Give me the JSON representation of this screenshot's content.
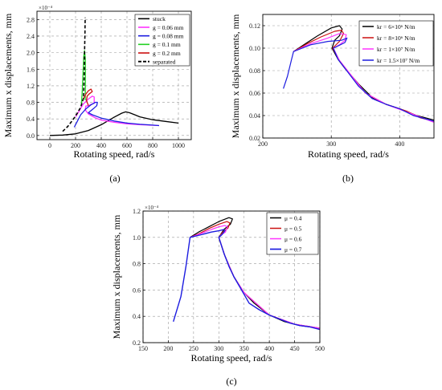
{
  "chart_data": [
    {
      "type": "line",
      "panel_label": "(a)",
      "xlabel": "Rotating speed, rad/s",
      "ylabel": "Maximum x displacements, mm",
      "y_multiplier": "×10⁻⁴",
      "xlim": [
        -100,
        1100
      ],
      "ylim": [
        -0.1,
        3.0
      ],
      "xticks": [
        0,
        200,
        400,
        600,
        800,
        1000
      ],
      "yticks": [
        0.0,
        0.4,
        0.8,
        1.2,
        1.6,
        2.0,
        2.4,
        2.8
      ],
      "tick_format": {
        "x": 0,
        "y": 1
      },
      "legend_loc": "top-right",
      "grid": true,
      "series": [
        {
          "name": "stuck",
          "color": "#000000",
          "dash": false,
          "width": 1.3,
          "points": [
            [
              0,
              0
            ],
            [
              100,
              0.01
            ],
            [
              200,
              0.04
            ],
            [
              300,
              0.12
            ],
            [
              400,
              0.26
            ],
            [
              500,
              0.44
            ],
            [
              560,
              0.54
            ],
            [
              590,
              0.57
            ],
            [
              620,
              0.55
            ],
            [
              660,
              0.5
            ],
            [
              700,
              0.45
            ],
            [
              800,
              0.38
            ],
            [
              900,
              0.34
            ],
            [
              1000,
              0.3
            ]
          ]
        },
        {
          "name": "g = 0.06 mm",
          "color": "#ff33ff",
          "dash": false,
          "width": 1.3,
          "points": [
            [
              200,
              0.45
            ],
            [
              230,
              0.6
            ],
            [
              260,
              0.76
            ],
            [
              300,
              0.88
            ],
            [
              330,
              0.95
            ],
            [
              345,
              0.93
            ],
            [
              345,
              0.78
            ],
            [
              320,
              0.75
            ],
            [
              300,
              0.72
            ],
            [
              280,
              0.71
            ],
            [
              275,
              0.62
            ],
            [
              300,
              0.52
            ],
            [
              350,
              0.43
            ],
            [
              400,
              0.37
            ],
            [
              500,
              0.32
            ],
            [
              600,
              0.28
            ],
            [
              700,
              0.26
            ],
            [
              850,
              0.24
            ]
          ]
        },
        {
          "name": "g = 0.08 mm",
          "color": "#1c1ce0",
          "dash": false,
          "width": 1.3,
          "points": [
            [
              190,
              0.2
            ],
            [
              210,
              0.32
            ],
            [
              240,
              0.5
            ],
            [
              280,
              0.64
            ],
            [
              320,
              0.74
            ],
            [
              355,
              0.8
            ],
            [
              370,
              0.8
            ],
            [
              365,
              0.72
            ],
            [
              340,
              0.65
            ],
            [
              300,
              0.55
            ],
            [
              330,
              0.5
            ],
            [
              400,
              0.42
            ],
            [
              500,
              0.35
            ],
            [
              600,
              0.3
            ],
            [
              700,
              0.27
            ],
            [
              800,
              0.25
            ],
            [
              850,
              0.24
            ]
          ]
        },
        {
          "name": "g = 0.1 mm",
          "color": "#22d022",
          "dash": false,
          "width": 1.3,
          "points": [
            [
              245,
              0.74
            ],
            [
              252,
              1.05
            ],
            [
              258,
              1.5
            ],
            [
              264,
              1.9
            ],
            [
              270,
              2.05
            ],
            [
              276,
              1.85
            ],
            [
              276,
              1.05
            ],
            [
              275,
              0.85
            ]
          ]
        },
        {
          "name": "g = 0.2 mm",
          "color": "#cc1111",
          "dash": false,
          "width": 1.3,
          "points": [
            [
              260,
              0.88
            ],
            [
              280,
              1.0
            ],
            [
              300,
              1.08
            ],
            [
              320,
              1.12
            ],
            [
              330,
              1.06
            ],
            [
              305,
              1.0
            ],
            [
              290,
              0.95
            ],
            [
              285,
              0.85
            ],
            [
              300,
              0.72
            ]
          ]
        },
        {
          "name": "separated",
          "color": "#000000",
          "dash": true,
          "width": 1.6,
          "points": [
            [
              100,
              0.1
            ],
            [
              140,
              0.22
            ],
            [
              180,
              0.38
            ],
            [
              210,
              0.52
            ],
            [
              240,
              0.68
            ],
            [
              262,
              0.9
            ],
            [
              265,
              1.2
            ],
            [
              268,
              1.6
            ],
            [
              270,
              2.0
            ],
            [
              273,
              2.45
            ],
            [
              275,
              2.85
            ]
          ]
        }
      ]
    },
    {
      "type": "line",
      "panel_label": "(b)",
      "xlabel": "Rotating speed, rad/s",
      "ylabel": "Maximum x displacements, mm",
      "xlim": [
        200,
        450
      ],
      "ylim": [
        0.02,
        0.13
      ],
      "xticks": [
        200,
        300,
        400
      ],
      "yticks": [
        0.02,
        0.04,
        0.06,
        0.08,
        0.1,
        0.12
      ],
      "tick_format": {
        "x": 0,
        "y": 2
      },
      "legend_loc": "top-right",
      "grid": true,
      "series": [
        {
          "name": "kr = 6×10⁶ N/m",
          "color": "#000000",
          "dash": false,
          "width": 1.2,
          "points": [
            [
              245,
              0.097
            ],
            [
              260,
              0.103
            ],
            [
              280,
              0.111
            ],
            [
              300,
              0.118
            ],
            [
              312,
              0.12
            ],
            [
              316,
              0.117
            ],
            [
              312,
              0.111
            ],
            [
              305,
              0.107
            ],
            [
              301,
              0.1
            ],
            [
              310,
              0.09
            ],
            [
              320,
              0.082
            ],
            [
              340,
              0.068
            ],
            [
              360,
              0.056
            ],
            [
              380,
              0.05
            ],
            [
              400,
              0.046
            ],
            [
              425,
              0.04
            ],
            [
              450,
              0.036
            ]
          ]
        },
        {
          "name": "kr = 8×10⁶ N/m",
          "color": "#cc1111",
          "dash": false,
          "width": 1.2,
          "points": [
            [
              245,
              0.097
            ],
            [
              265,
              0.104
            ],
            [
              285,
              0.11
            ],
            [
              305,
              0.115
            ],
            [
              315,
              0.116
            ],
            [
              318,
              0.113
            ],
            [
              312,
              0.106
            ],
            [
              302,
              0.1
            ],
            [
              312,
              0.089
            ],
            [
              330,
              0.075
            ],
            [
              350,
              0.06
            ],
            [
              380,
              0.05
            ],
            [
              410,
              0.044
            ],
            [
              430,
              0.038
            ],
            [
              450,
              0.035
            ]
          ]
        },
        {
          "name": "kr = 1×10⁷ N/m",
          "color": "#ff33ff",
          "dash": false,
          "width": 1.2,
          "points": [
            [
              245,
              0.097
            ],
            [
              270,
              0.104
            ],
            [
              295,
              0.109
            ],
            [
              312,
              0.113
            ],
            [
              322,
              0.112
            ],
            [
              320,
              0.107
            ],
            [
              312,
              0.103
            ],
            [
              303,
              0.1
            ],
            [
              312,
              0.089
            ],
            [
              330,
              0.075
            ],
            [
              350,
              0.06
            ],
            [
              380,
              0.05
            ],
            [
              420,
              0.041
            ],
            [
              450,
              0.034
            ]
          ]
        },
        {
          "name": "kr = 1.5×10⁷ N/m",
          "color": "#1c1ce0",
          "dash": false,
          "width": 1.2,
          "points": [
            [
              230,
              0.064
            ],
            [
              236,
              0.075
            ],
            [
              242,
              0.09
            ],
            [
              245,
              0.097
            ],
            [
              270,
              0.103
            ],
            [
              295,
              0.106
            ],
            [
              315,
              0.107
            ],
            [
              323,
              0.109
            ],
            [
              320,
              0.105
            ],
            [
              310,
              0.102
            ],
            [
              303,
              0.1
            ],
            [
              310,
              0.09
            ],
            [
              325,
              0.078
            ],
            [
              340,
              0.066
            ],
            [
              360,
              0.055
            ],
            [
              380,
              0.05
            ],
            [
              400,
              0.046
            ],
            [
              420,
              0.04
            ],
            [
              450,
              0.035
            ]
          ]
        }
      ]
    },
    {
      "type": "line",
      "panel_label": "(c)",
      "xlabel": "Rotating speed, rad/s",
      "ylabel": "Maximum x displacements, mm",
      "y_multiplier": "×10⁻⁴",
      "xlim": [
        150,
        500
      ],
      "ylim": [
        0.2,
        1.2
      ],
      "xticks": [
        150,
        200,
        250,
        300,
        350,
        400,
        450,
        500
      ],
      "yticks": [
        0.2,
        0.4,
        0.6,
        0.8,
        1.0,
        1.2
      ],
      "tick_format": {
        "x": 0,
        "y": 1
      },
      "legend_loc": "top-right",
      "grid": true,
      "series": [
        {
          "name": "μ = 0.4",
          "color": "#000000",
          "dash": false,
          "width": 1.2,
          "points": [
            [
              243,
              1.0
            ],
            [
              260,
              1.04
            ],
            [
              280,
              1.08
            ],
            [
              300,
              1.12
            ],
            [
              320,
              1.15
            ],
            [
              327,
              1.14
            ],
            [
              323,
              1.1
            ],
            [
              310,
              1.06
            ],
            [
              300,
              1.0
            ],
            [
              312,
              0.86
            ],
            [
              330,
              0.7
            ],
            [
              350,
              0.58
            ],
            [
              370,
              0.5
            ],
            [
              400,
              0.41
            ],
            [
              430,
              0.36
            ],
            [
              460,
              0.33
            ],
            [
              500,
              0.31
            ]
          ]
        },
        {
          "name": "μ = 0.5",
          "color": "#cc1111",
          "dash": false,
          "width": 1.2,
          "points": [
            [
              243,
              1.0
            ],
            [
              262,
              1.03
            ],
            [
              282,
              1.07
            ],
            [
              300,
              1.1
            ],
            [
              316,
              1.12
            ],
            [
              322,
              1.11
            ],
            [
              318,
              1.07
            ],
            [
              308,
              1.04
            ],
            [
              300,
              1.0
            ],
            [
              312,
              0.86
            ],
            [
              330,
              0.7
            ],
            [
              350,
              0.58
            ],
            [
              400,
              0.41
            ],
            [
              450,
              0.34
            ],
            [
              500,
              0.31
            ]
          ]
        },
        {
          "name": "μ = 0.6",
          "color": "#ff33ff",
          "dash": false,
          "width": 1.2,
          "points": [
            [
              243,
              1.0
            ],
            [
              265,
              1.03
            ],
            [
              285,
              1.06
            ],
            [
              300,
              1.08
            ],
            [
              312,
              1.09
            ],
            [
              317,
              1.08
            ],
            [
              313,
              1.04
            ],
            [
              305,
              1.02
            ],
            [
              300,
              1.0
            ],
            [
              312,
              0.86
            ],
            [
              330,
              0.7
            ],
            [
              350,
              0.58
            ],
            [
              400,
              0.41
            ],
            [
              450,
              0.34
            ],
            [
              500,
              0.31
            ]
          ]
        },
        {
          "name": "μ = 0.7",
          "color": "#1c1ce0",
          "dash": false,
          "width": 1.4,
          "points": [
            [
              210,
              0.36
            ],
            [
              225,
              0.55
            ],
            [
              235,
              0.78
            ],
            [
              243,
              1.0
            ],
            [
              265,
              1.02
            ],
            [
              285,
              1.04
            ],
            [
              300,
              1.05
            ],
            [
              310,
              1.06
            ],
            [
              312,
              1.05
            ],
            [
              306,
              1.02
            ],
            [
              300,
              1.0
            ],
            [
              310,
              0.88
            ],
            [
              320,
              0.78
            ],
            [
              330,
              0.7
            ],
            [
              345,
              0.6
            ],
            [
              360,
              0.5
            ],
            [
              380,
              0.45
            ],
            [
              400,
              0.41
            ],
            [
              420,
              0.38
            ],
            [
              440,
              0.35
            ],
            [
              460,
              0.33
            ],
            [
              480,
              0.32
            ],
            [
              500,
              0.3
            ]
          ]
        }
      ]
    }
  ]
}
